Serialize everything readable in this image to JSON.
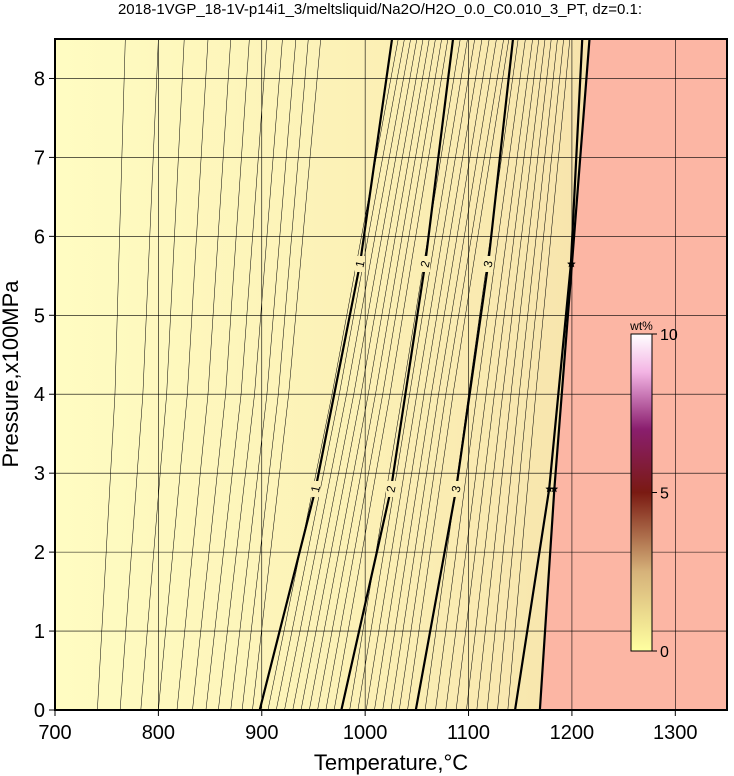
{
  "chart_data": {
    "type": "contour",
    "title": "2018-1VGP_18-1V-p14i1_3/meltsliquid/Na2O/H2O_0.0_C0.010_3_PT, dz=0.1:",
    "x_label": "Temperature,°C",
    "y_label": "Pressure,x100MPa",
    "xlim": [
      700,
      1350
    ],
    "xticks": [
      700,
      800,
      900,
      1000,
      1100,
      1200,
      1300
    ],
    "ylim": [
      0,
      8.5
    ],
    "yticks": [
      0,
      1,
      2,
      3,
      4,
      5,
      6,
      7,
      8
    ],
    "grid": true,
    "pressures": [
      0,
      2.8,
      5.65,
      8.5
    ],
    "series": [
      {
        "name": "1",
        "values": [
          898,
          952,
          995,
          1026
        ]
      },
      {
        "name": "2",
        "values": [
          977,
          1025,
          1058,
          1085
        ]
      },
      {
        "name": "3",
        "values": [
          1049,
          1088,
          1119,
          1143
        ]
      },
      {
        "values": [
          1145,
          1178,
          1199,
          1210
        ]
      },
      {
        "values": [
          1169,
          1183,
          1200,
          1217
        ]
      }
    ],
    "thin_pressures": [
      0,
      4,
      8.5
    ],
    "thin_contours": [
      [
        741,
        758,
        768
      ],
      [
        763,
        785,
        800
      ],
      [
        783,
        808,
        825
      ],
      [
        800,
        828,
        848
      ],
      [
        818,
        848,
        870
      ],
      [
        833,
        865,
        888
      ],
      [
        846,
        880,
        905
      ],
      [
        858,
        893,
        920
      ],
      [
        870,
        905,
        933
      ],
      [
        881,
        916,
        945
      ],
      [
        891,
        926,
        957
      ],
      [
        906,
        968,
        1032
      ],
      [
        914,
        975,
        1038
      ],
      [
        922,
        982,
        1044
      ],
      [
        930,
        989,
        1050
      ],
      [
        938,
        996,
        1056
      ],
      [
        946,
        1003,
        1062
      ],
      [
        954,
        1010,
        1068
      ],
      [
        962,
        1017,
        1074
      ],
      [
        970,
        1024,
        1080
      ],
      [
        985,
        1036,
        1092
      ],
      [
        993,
        1043,
        1099
      ],
      [
        1001,
        1050,
        1106
      ],
      [
        1009,
        1057,
        1113
      ],
      [
        1017,
        1064,
        1120
      ],
      [
        1025,
        1071,
        1127
      ],
      [
        1033,
        1078,
        1134
      ],
      [
        1041,
        1085,
        1139
      ],
      [
        1058,
        1100,
        1148
      ],
      [
        1068,
        1108,
        1155
      ],
      [
        1078,
        1117,
        1162
      ],
      [
        1088,
        1125,
        1168
      ],
      [
        1098,
        1133,
        1174
      ],
      [
        1108,
        1141,
        1180
      ],
      [
        1118,
        1149,
        1186
      ],
      [
        1128,
        1157,
        1192
      ],
      [
        1138,
        1165,
        1198
      ]
    ],
    "colorbar": {
      "label": "wt%",
      "lim": [
        0,
        10
      ],
      "ticks": [
        0,
        5,
        10
      ]
    }
  }
}
